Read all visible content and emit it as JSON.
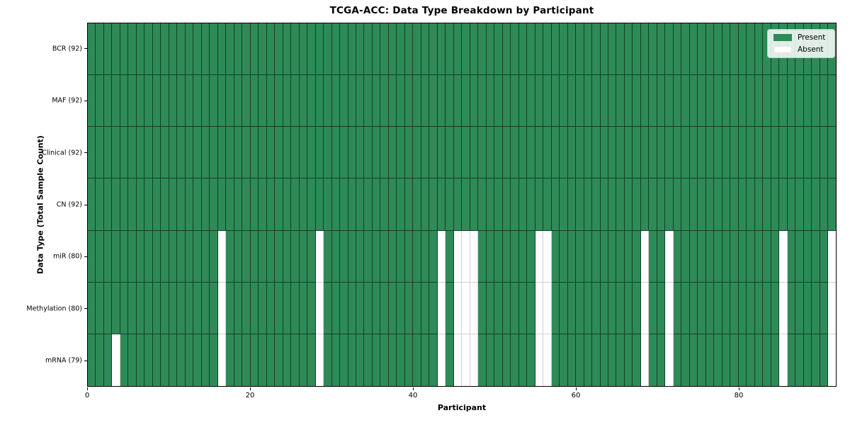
{
  "colors": {
    "present": "#2e8b57",
    "absent": "#ffffff",
    "present_edge": "rgba(0,0,0,0.55)",
    "absent_edge": "rgba(0,0,0,0.18)",
    "spine": "#000000",
    "background": "#ffffff",
    "legend_border": "#cccccc"
  },
  "chart_data": {
    "type": "heatmap",
    "title": "TCGA-ACC: Data Type Breakdown by Participant",
    "xlabel": "Participant",
    "ylabel": "Data Type (Total Sample Count)",
    "legend": [
      "Present",
      "Absent"
    ],
    "legend_position": "upper right",
    "grid": false,
    "n_participants": 92,
    "x_range": [
      0,
      92
    ],
    "x_ticks": [
      0,
      20,
      40,
      60,
      80
    ],
    "rows": [
      {
        "label": "BCR (92)",
        "present_count": 92,
        "absent_participants": []
      },
      {
        "label": "MAF (92)",
        "present_count": 92,
        "absent_participants": []
      },
      {
        "label": "Clinical (92)",
        "present_count": 92,
        "absent_participants": []
      },
      {
        "label": "CN (92)",
        "present_count": 92,
        "absent_participants": []
      },
      {
        "label": "miR (80)",
        "present_count": 80,
        "absent_participants": [
          16,
          28,
          43,
          45,
          46,
          47,
          55,
          56,
          68,
          71,
          85,
          91
        ]
      },
      {
        "label": "Methylation (80)",
        "present_count": 80,
        "absent_participants": [
          16,
          28,
          43,
          45,
          46,
          47,
          55,
          56,
          68,
          71,
          85,
          91
        ]
      },
      {
        "label": "mRNA (79)",
        "present_count": 79,
        "absent_participants": [
          3,
          16,
          28,
          43,
          45,
          46,
          47,
          55,
          56,
          68,
          71,
          85,
          91
        ]
      }
    ]
  }
}
